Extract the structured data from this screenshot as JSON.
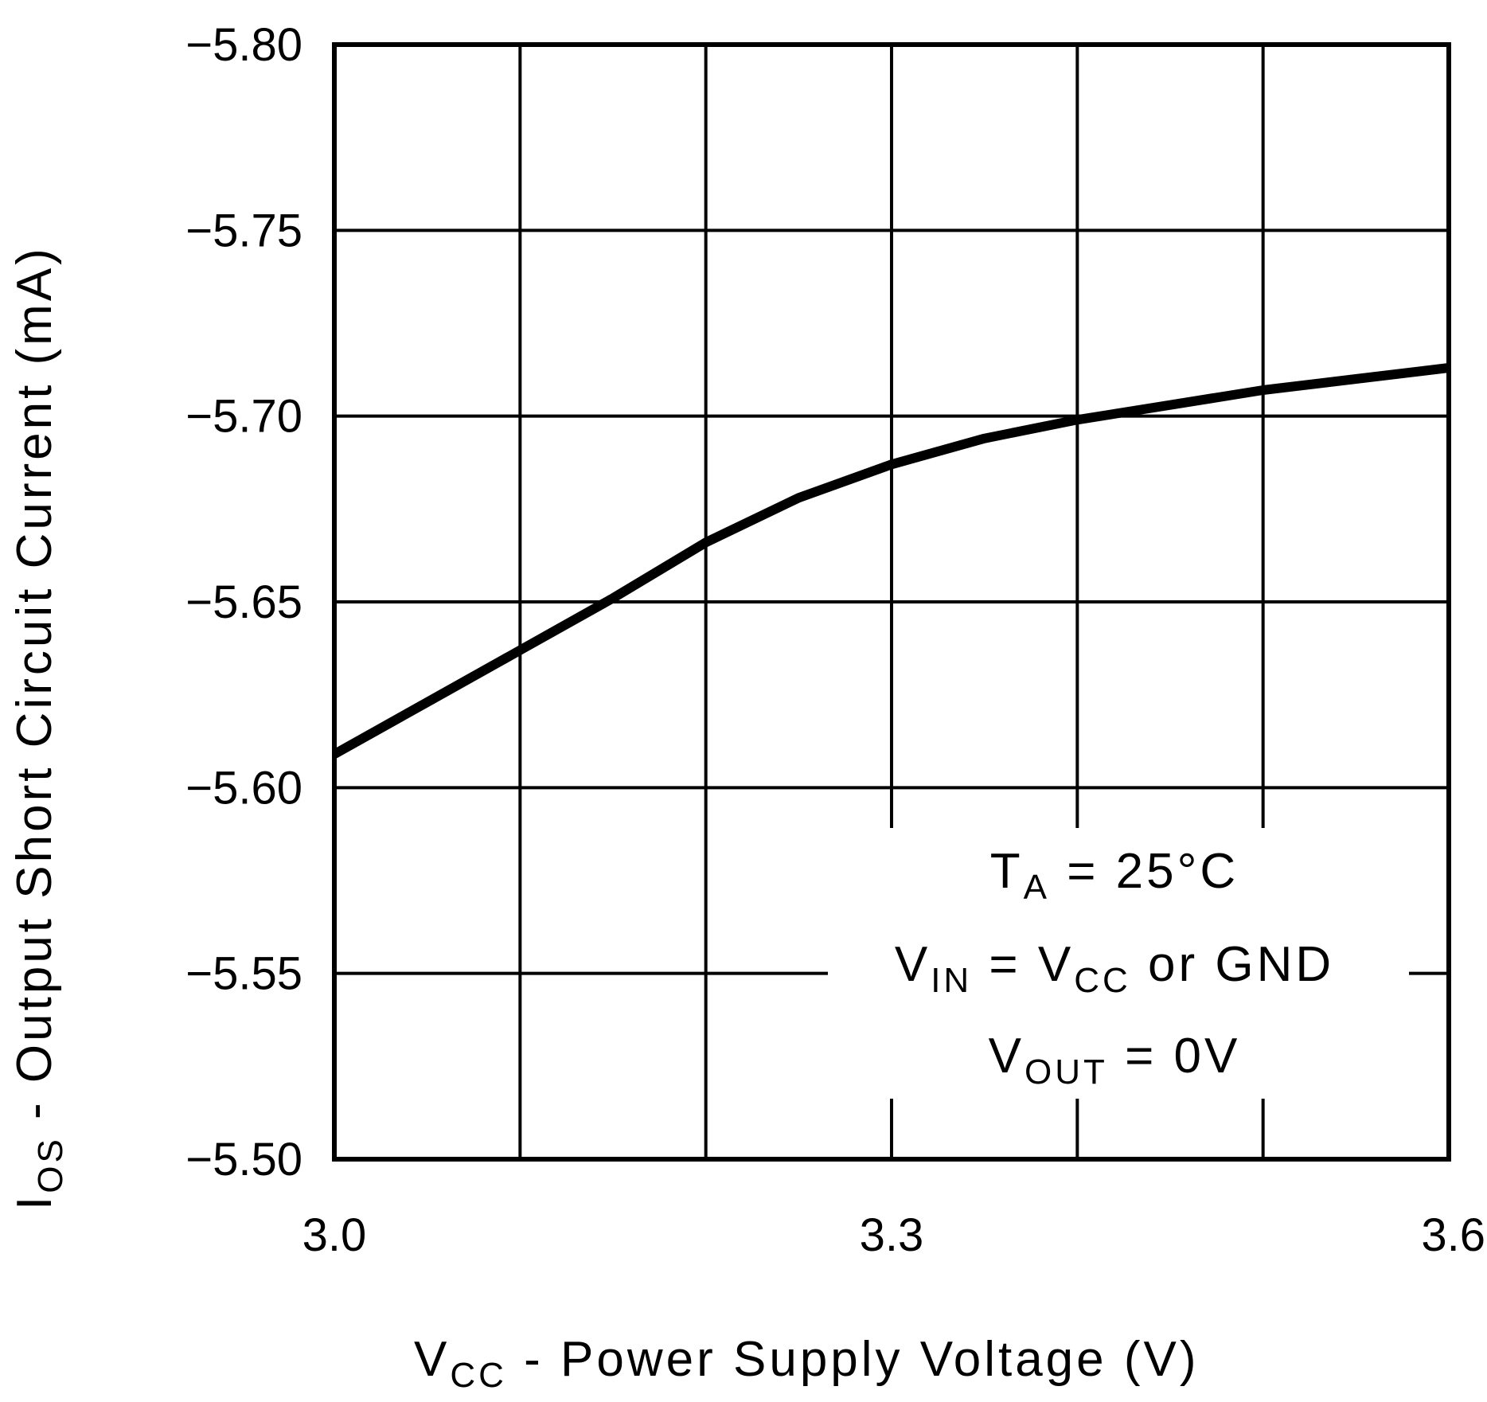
{
  "chart_data": {
    "type": "line",
    "xlabel": {
      "main": "V",
      "sub": "CC",
      "rest": " - Power Supply Voltage (V)"
    },
    "ylabel": {
      "main": "I",
      "sub": "OS",
      "rest": " - Output Short Circuit Current (mA)"
    },
    "xlim": [
      3.0,
      3.6
    ],
    "ylim": [
      -5.5,
      -5.8
    ],
    "x_tick_labels": [
      "3.0",
      "3.3",
      "3.6"
    ],
    "x_ticks": [
      3.0,
      3.3,
      3.6
    ],
    "x_grid": [
      3.0,
      3.1,
      3.2,
      3.3,
      3.4,
      3.5,
      3.6
    ],
    "y_tick_labels": [
      "-5.80",
      "-5.75",
      "-5.70",
      "-5.65",
      "-5.60",
      "-5.55",
      "-5.50"
    ],
    "y_ticks": [
      -5.8,
      -5.75,
      -5.7,
      -5.65,
      -5.6,
      -5.55,
      -5.5
    ],
    "grid": true,
    "series": [
      {
        "x": [
          3.0,
          3.05,
          3.1,
          3.15,
          3.2,
          3.25,
          3.3,
          3.35,
          3.4,
          3.45,
          3.5,
          3.55,
          3.6
        ],
        "y": [
          -5.609,
          -5.623,
          -5.637,
          -5.651,
          -5.666,
          -5.678,
          -5.687,
          -5.694,
          -5.699,
          -5.703,
          -5.707,
          -5.71,
          -5.713
        ]
      }
    ],
    "annotations": [
      {
        "main": "T",
        "sub": "A",
        "rest": " = 25°C"
      },
      {
        "main": "V",
        "sub": "IN",
        "mid": " = V",
        "sub2": "CC",
        "rest": " or GND"
      },
      {
        "main": "V",
        "sub": "OUT",
        "rest": " = 0V"
      }
    ]
  }
}
